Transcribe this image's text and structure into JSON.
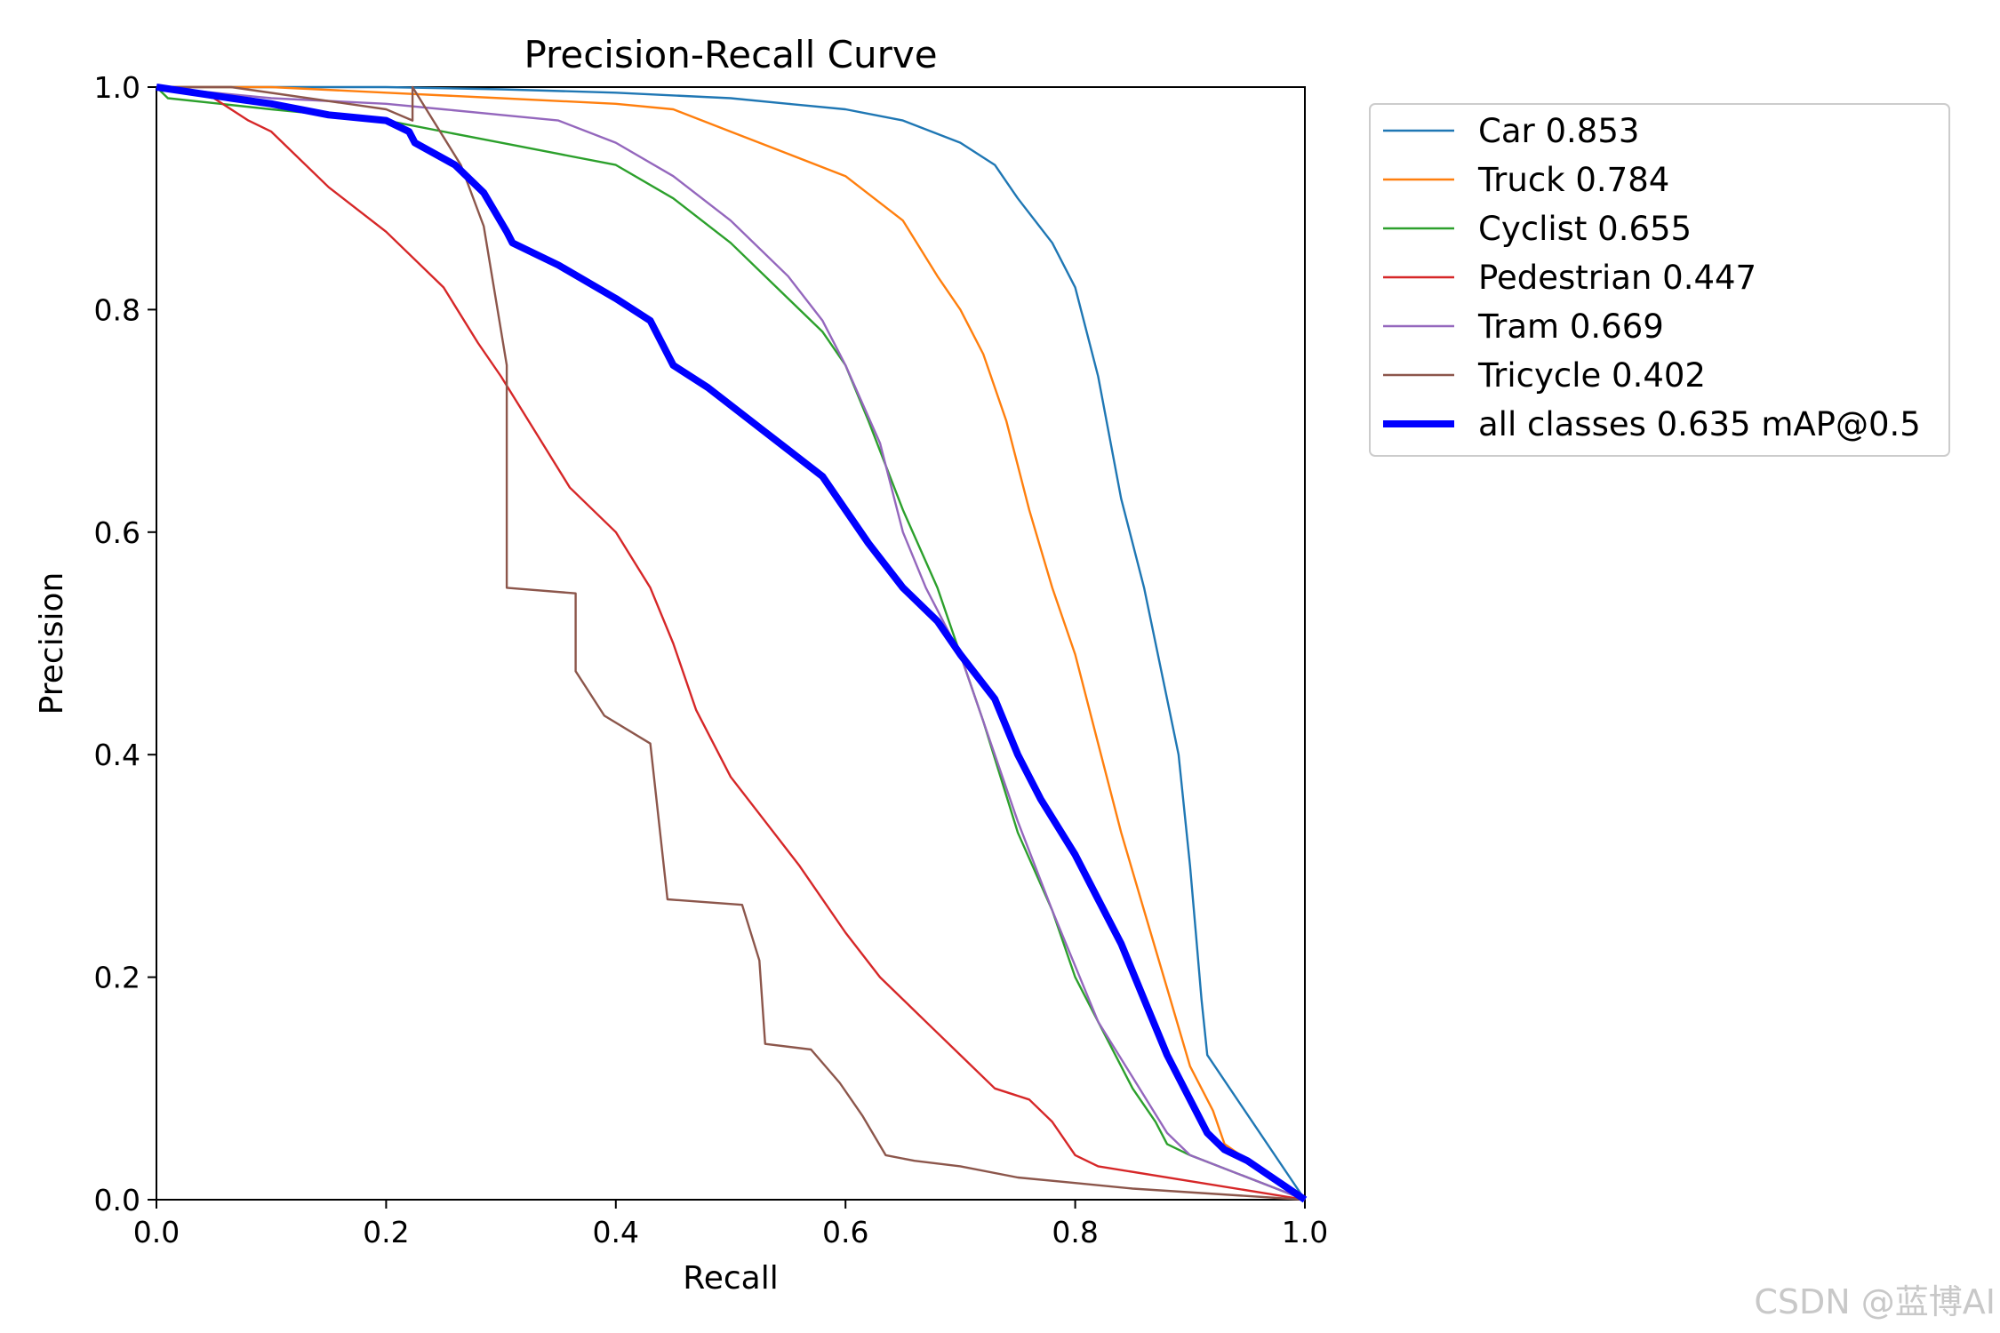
{
  "chart_data": {
    "type": "line",
    "title": "Precision-Recall Curve",
    "xlabel": "Recall",
    "ylabel": "Precision",
    "xlim": [
      0,
      1
    ],
    "ylim": [
      0,
      1
    ],
    "xticks": [
      "0.0",
      "0.2",
      "0.4",
      "0.6",
      "0.8",
      "1.0"
    ],
    "yticks": [
      "0.0",
      "0.2",
      "0.4",
      "0.6",
      "0.8",
      "1.0"
    ],
    "grid": false,
    "legend_position": "outside-top-right",
    "series": [
      {
        "name": "Car",
        "label": "Car 0.853",
        "color": "#1f77b4",
        "x": [
          0,
          0.05,
          0.2,
          0.3,
          0.4,
          0.5,
          0.55,
          0.6,
          0.65,
          0.7,
          0.73,
          0.75,
          0.78,
          0.8,
          0.82,
          0.84,
          0.86,
          0.88,
          0.89,
          0.9,
          0.905,
          0.91,
          0.915,
          1.0
        ],
        "y": [
          1.0,
          1.0,
          1.0,
          0.998,
          0.995,
          0.99,
          0.985,
          0.98,
          0.97,
          0.95,
          0.93,
          0.9,
          0.86,
          0.82,
          0.74,
          0.63,
          0.55,
          0.45,
          0.4,
          0.3,
          0.24,
          0.18,
          0.13,
          0.0
        ]
      },
      {
        "name": "Truck",
        "label": "Truck 0.784",
        "color": "#ff7f0e",
        "x": [
          0,
          0.1,
          0.2,
          0.3,
          0.4,
          0.45,
          0.5,
          0.55,
          0.6,
          0.65,
          0.68,
          0.7,
          0.72,
          0.74,
          0.76,
          0.78,
          0.8,
          0.82,
          0.84,
          0.86,
          0.88,
          0.9,
          0.92,
          0.93,
          1.0
        ],
        "y": [
          1.0,
          1.0,
          0.995,
          0.99,
          0.985,
          0.98,
          0.96,
          0.94,
          0.92,
          0.88,
          0.83,
          0.8,
          0.76,
          0.7,
          0.62,
          0.55,
          0.49,
          0.41,
          0.33,
          0.26,
          0.19,
          0.12,
          0.08,
          0.05,
          0.0
        ]
      },
      {
        "name": "Cyclist",
        "label": "Cyclist 0.655",
        "color": "#2ca02c",
        "x": [
          0,
          0.01,
          0.1,
          0.2,
          0.3,
          0.35,
          0.4,
          0.45,
          0.5,
          0.55,
          0.58,
          0.6,
          0.62,
          0.65,
          0.68,
          0.7,
          0.72,
          0.75,
          0.78,
          0.8,
          0.82,
          0.85,
          0.87,
          0.88,
          0.9,
          1.0
        ],
        "y": [
          1.0,
          0.99,
          0.98,
          0.97,
          0.95,
          0.94,
          0.93,
          0.9,
          0.86,
          0.81,
          0.78,
          0.75,
          0.7,
          0.62,
          0.55,
          0.49,
          0.43,
          0.33,
          0.26,
          0.2,
          0.16,
          0.1,
          0.07,
          0.05,
          0.04,
          0.0
        ]
      },
      {
        "name": "Pedestrian",
        "label": "Pedestrian 0.447",
        "color": "#d62728",
        "x": [
          0,
          0.05,
          0.08,
          0.1,
          0.12,
          0.15,
          0.2,
          0.25,
          0.28,
          0.3,
          0.33,
          0.36,
          0.4,
          0.43,
          0.45,
          0.47,
          0.5,
          0.53,
          0.56,
          0.6,
          0.63,
          0.67,
          0.7,
          0.73,
          0.76,
          0.78,
          0.8,
          0.82,
          1.0
        ],
        "y": [
          1.0,
          0.99,
          0.97,
          0.96,
          0.94,
          0.91,
          0.87,
          0.82,
          0.77,
          0.74,
          0.69,
          0.64,
          0.6,
          0.55,
          0.5,
          0.44,
          0.38,
          0.34,
          0.3,
          0.24,
          0.2,
          0.16,
          0.13,
          0.1,
          0.09,
          0.07,
          0.04,
          0.03,
          0.0
        ]
      },
      {
        "name": "Tram",
        "label": "Tram 0.669",
        "color": "#9467bd",
        "x": [
          0,
          0.05,
          0.1,
          0.2,
          0.25,
          0.3,
          0.35,
          0.4,
          0.45,
          0.5,
          0.55,
          0.58,
          0.6,
          0.63,
          0.65,
          0.67,
          0.7,
          0.72,
          0.75,
          0.78,
          0.8,
          0.82,
          0.85,
          0.88,
          0.9,
          1.0
        ],
        "y": [
          1.0,
          0.995,
          0.99,
          0.985,
          0.98,
          0.975,
          0.97,
          0.95,
          0.92,
          0.88,
          0.83,
          0.79,
          0.75,
          0.68,
          0.6,
          0.55,
          0.49,
          0.43,
          0.34,
          0.26,
          0.21,
          0.16,
          0.11,
          0.06,
          0.04,
          0.0
        ]
      },
      {
        "name": "Tricycle",
        "label": "Tricycle 0.402",
        "color": "#8c564b",
        "x": [
          0,
          0.065,
          0.2,
          0.223,
          0.223,
          0.265,
          0.285,
          0.305,
          0.305,
          0.365,
          0.365,
          0.39,
          0.43,
          0.445,
          0.51,
          0.525,
          0.53,
          0.57,
          0.595,
          0.615,
          0.635,
          0.66,
          0.7,
          0.75,
          0.8,
          0.85,
          1.0
        ],
        "y": [
          1.0,
          1.0,
          0.98,
          0.97,
          1.0,
          0.93,
          0.875,
          0.75,
          0.55,
          0.545,
          0.475,
          0.435,
          0.41,
          0.27,
          0.265,
          0.215,
          0.14,
          0.135,
          0.105,
          0.075,
          0.04,
          0.035,
          0.03,
          0.02,
          0.015,
          0.01,
          0.0
        ]
      },
      {
        "name": "all classes",
        "label": "all classes 0.635 mAP@0.5",
        "color": "#0000ff",
        "x": [
          0,
          0.065,
          0.1,
          0.15,
          0.2,
          0.22,
          0.225,
          0.26,
          0.285,
          0.305,
          0.31,
          0.35,
          0.4,
          0.43,
          0.45,
          0.48,
          0.53,
          0.58,
          0.6,
          0.62,
          0.65,
          0.68,
          0.7,
          0.73,
          0.75,
          0.77,
          0.8,
          0.82,
          0.84,
          0.86,
          0.88,
          0.9,
          0.915,
          0.93,
          0.95,
          1.0
        ],
        "y": [
          1.0,
          0.99,
          0.985,
          0.975,
          0.97,
          0.96,
          0.95,
          0.93,
          0.905,
          0.87,
          0.86,
          0.84,
          0.81,
          0.79,
          0.75,
          0.73,
          0.69,
          0.65,
          0.62,
          0.59,
          0.55,
          0.52,
          0.49,
          0.45,
          0.4,
          0.36,
          0.31,
          0.27,
          0.23,
          0.18,
          0.13,
          0.09,
          0.06,
          0.045,
          0.035,
          0.0
        ]
      }
    ]
  },
  "watermark": "CSDN @蓝博AI"
}
